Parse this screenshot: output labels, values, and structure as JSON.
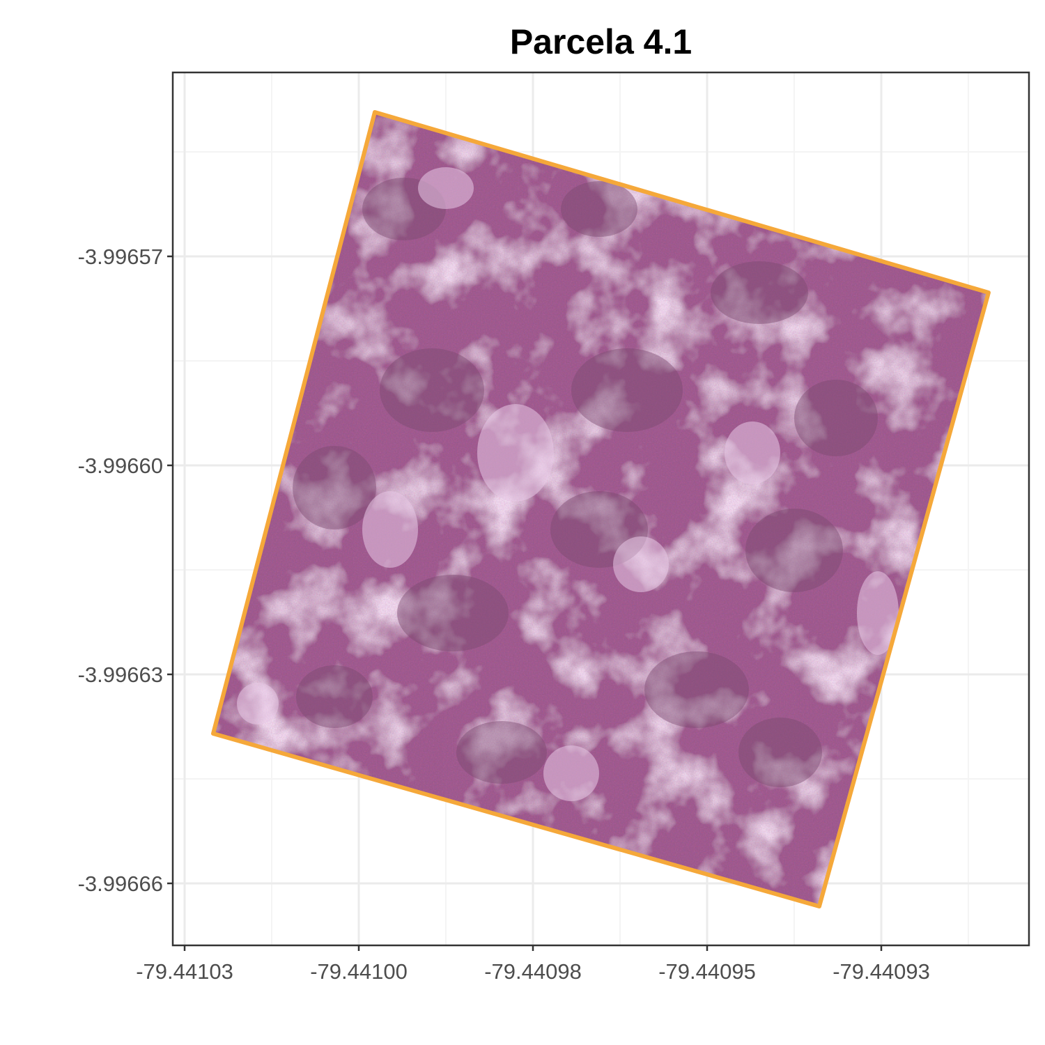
{
  "title": "Parcela 4.1",
  "map": {
    "x_ticks": [
      "-79.44103",
      "-79.44100",
      "-79.44098",
      "-79.44095",
      "-79.44093"
    ],
    "y_ticks": [
      "-3.99657",
      "-3.99660",
      "-3.99663",
      "-3.99666"
    ],
    "colors": {
      "panel_background": "#ffffff",
      "grid_major": "#ebebeb",
      "grid_minor": "#f4f4f4",
      "panel_border": "#333333",
      "plot_outline": "#f5a83a",
      "imagery_base": "#9a5a8a",
      "imagery_dark": "#7a4a6e",
      "imagery_light": "#e8c8e6",
      "imagery_pink": "#d0509a"
    },
    "layers": [
      "false-color-imagery",
      "plot-boundary-polygon"
    ]
  }
}
